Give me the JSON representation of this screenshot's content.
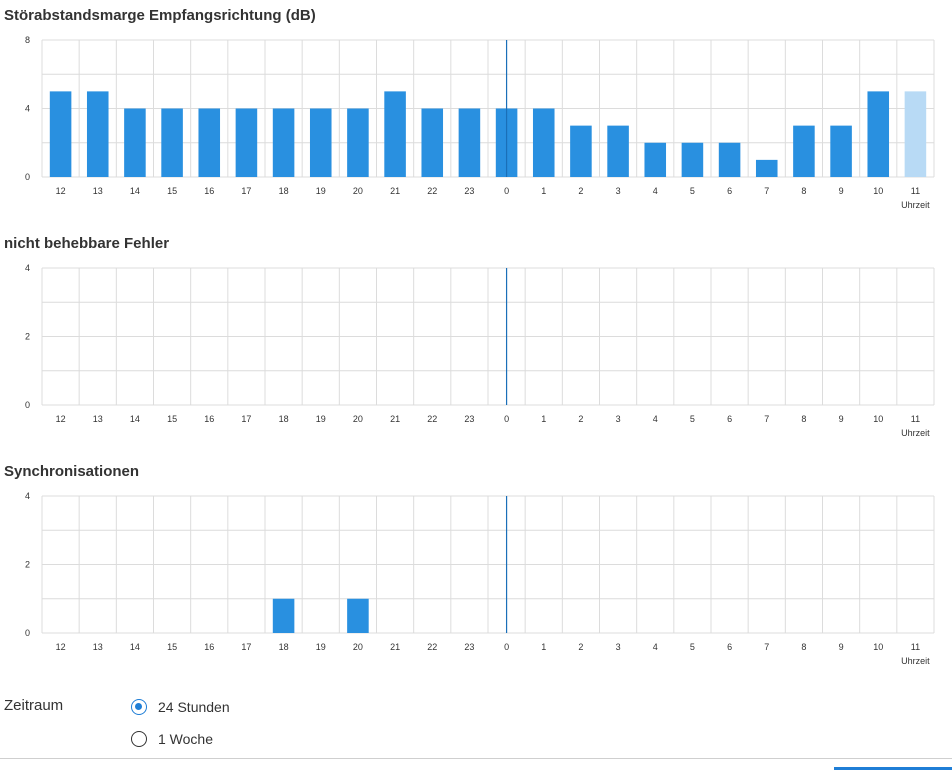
{
  "hour_labels": [
    "12",
    "13",
    "14",
    "15",
    "16",
    "17",
    "18",
    "19",
    "20",
    "21",
    "22",
    "23",
    "0",
    "1",
    "2",
    "3",
    "4",
    "5",
    "6",
    "7",
    "8",
    "9",
    "10",
    "11"
  ],
  "colors": {
    "bar": "#2990e0",
    "bar_current": "#b8daf5",
    "grid": "#dcdcdc",
    "marker": "#1a6fb8"
  },
  "chart_data": [
    {
      "type": "bar",
      "title": "Störabstandsmarge Empfangsrichtung (dB)",
      "xlabel": "Uhrzeit",
      "ylabel": "",
      "categories": [
        "12",
        "13",
        "14",
        "15",
        "16",
        "17",
        "18",
        "19",
        "20",
        "21",
        "22",
        "23",
        "0",
        "1",
        "2",
        "3",
        "4",
        "5",
        "6",
        "7",
        "8",
        "9",
        "10",
        "11"
      ],
      "values": [
        5,
        5,
        4,
        4,
        4,
        4,
        4,
        4,
        4,
        5,
        4,
        4,
        4,
        4,
        3,
        3,
        2,
        2,
        2,
        1,
        3,
        3,
        5,
        5
      ],
      "highlight_last": true,
      "ylim": [
        0,
        8
      ],
      "yticks": [
        0,
        4,
        8
      ],
      "marker_category": "0",
      "grid": true
    },
    {
      "type": "bar",
      "title": "nicht behebbare Fehler",
      "xlabel": "Uhrzeit",
      "ylabel": "",
      "categories": [
        "12",
        "13",
        "14",
        "15",
        "16",
        "17",
        "18",
        "19",
        "20",
        "21",
        "22",
        "23",
        "0",
        "1",
        "2",
        "3",
        "4",
        "5",
        "6",
        "7",
        "8",
        "9",
        "10",
        "11"
      ],
      "values": [
        0,
        0,
        0,
        0,
        0,
        0,
        0,
        0,
        0,
        0,
        0,
        0,
        0,
        0,
        0,
        0,
        0,
        0,
        0,
        0,
        0,
        0,
        0,
        0
      ],
      "highlight_last": false,
      "ylim": [
        0,
        4
      ],
      "yticks": [
        0,
        2,
        4
      ],
      "marker_category": "0",
      "grid": true
    },
    {
      "type": "bar",
      "title": "Synchronisationen",
      "xlabel": "Uhrzeit",
      "ylabel": "",
      "categories": [
        "12",
        "13",
        "14",
        "15",
        "16",
        "17",
        "18",
        "19",
        "20",
        "21",
        "22",
        "23",
        "0",
        "1",
        "2",
        "3",
        "4",
        "5",
        "6",
        "7",
        "8",
        "9",
        "10",
        "11"
      ],
      "values": [
        0,
        0,
        0,
        0,
        0,
        0,
        1,
        0,
        1,
        0,
        0,
        0,
        0,
        0,
        0,
        0,
        0,
        0,
        0,
        0,
        0,
        0,
        0,
        0
      ],
      "highlight_last": false,
      "ylim": [
        0,
        4
      ],
      "yticks": [
        0,
        2,
        4
      ],
      "marker_category": "0",
      "grid": true
    }
  ],
  "period": {
    "label": "Zeitraum",
    "options": [
      {
        "label": "24 Stunden",
        "checked": true
      },
      {
        "label": "1 Woche",
        "checked": false
      }
    ]
  }
}
